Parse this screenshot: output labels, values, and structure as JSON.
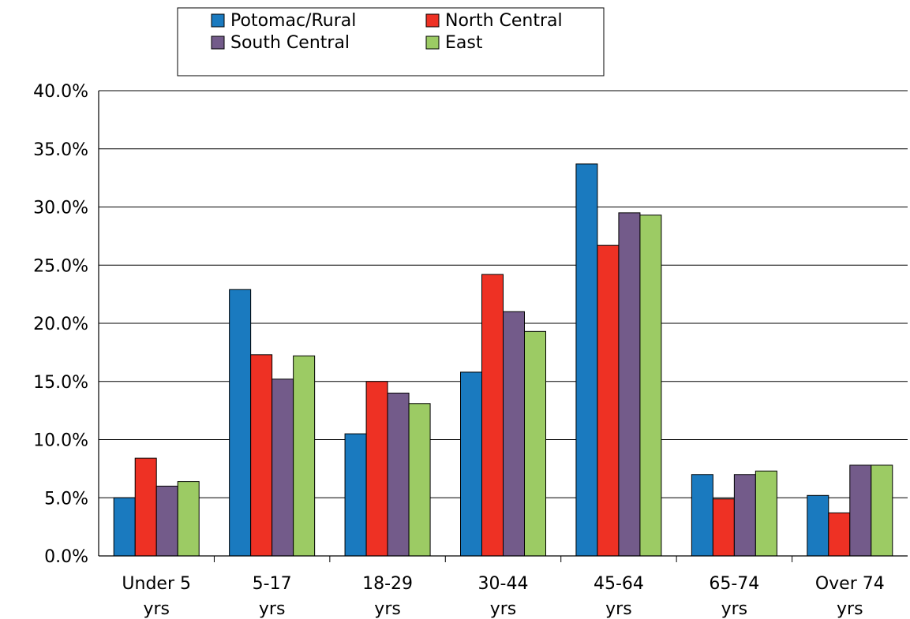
{
  "chart_data": {
    "type": "bar",
    "categories": [
      [
        "Under 5",
        "yrs"
      ],
      [
        "5-17",
        "yrs"
      ],
      [
        "18-29",
        "yrs"
      ],
      [
        "30-44",
        "yrs"
      ],
      [
        "45-64",
        "yrs"
      ],
      [
        "65-74",
        "yrs"
      ],
      [
        "Over 74",
        "yrs"
      ]
    ],
    "series": [
      {
        "name": "Potomac/Rural",
        "color": "#1a7abf",
        "values": [
          5.0,
          22.9,
          10.5,
          15.8,
          33.7,
          7.0,
          5.2
        ]
      },
      {
        "name": "North Central",
        "color": "#ee3124",
        "values": [
          8.4,
          17.3,
          15.0,
          24.2,
          26.7,
          4.9,
          3.7
        ]
      },
      {
        "name": "South Central",
        "color": "#735b8a",
        "values": [
          6.0,
          15.2,
          14.0,
          21.0,
          29.5,
          7.0,
          7.8
        ]
      },
      {
        "name": "East",
        "color": "#9ccb64",
        "values": [
          6.4,
          17.2,
          13.1,
          19.3,
          29.3,
          7.3,
          7.8
        ]
      }
    ],
    "ylim": [
      0,
      40
    ],
    "yticks": [
      "0.0%",
      "5.0%",
      "10.0%",
      "15.0%",
      "20.0%",
      "25.0%",
      "30.0%",
      "35.0%",
      "40.0%"
    ],
    "grid": true,
    "legend": "top-center",
    "title": "",
    "xlabel": "",
    "ylabel": ""
  }
}
